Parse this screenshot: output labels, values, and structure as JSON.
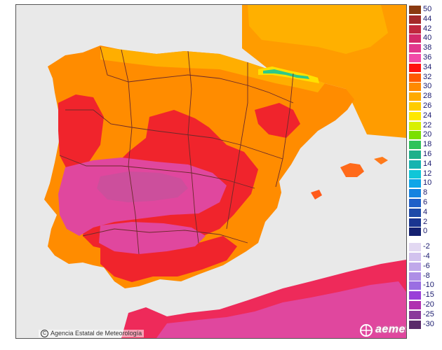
{
  "map": {
    "credit_text": "Agencia Estatal de Meteorología",
    "copyright_symbol": "C",
    "logo_text": "aemet",
    "colors": {
      "sea": "#e9e9e9",
      "land_base": "#ff8c00",
      "land_warm": "#ff6a00",
      "hot_red": "#f0242c",
      "hottest_pink": "#e8409c",
      "pink_core": "#de56b0",
      "mountain_cool": "#ffb400",
      "cold_green": "#2ec98a",
      "border": "#6b2a2a"
    }
  },
  "legend": {
    "title": "",
    "items": [
      {
        "label": "50",
        "color": "#8a3a10"
      },
      {
        "label": "44",
        "color": "#a42a2a"
      },
      {
        "label": "42",
        "color": "#c0283e"
      },
      {
        "label": "40",
        "color": "#d42a6a"
      },
      {
        "label": "38",
        "color": "#e2378d"
      },
      {
        "label": "36",
        "color": "#f24aa8"
      },
      {
        "label": "34",
        "color": "#ff1010"
      },
      {
        "label": "32",
        "color": "#ff5a00"
      },
      {
        "label": "30",
        "color": "#ff8a00"
      },
      {
        "label": "28",
        "color": "#ffaa00"
      },
      {
        "label": "26",
        "color": "#ffcc00"
      },
      {
        "label": "24",
        "color": "#ffe800"
      },
      {
        "label": "22",
        "color": "#d8f000"
      },
      {
        "label": "20",
        "color": "#7ae000"
      },
      {
        "label": "18",
        "color": "#2ec35a"
      },
      {
        "label": "16",
        "color": "#1eb08a"
      },
      {
        "label": "14",
        "color": "#17b4b0"
      },
      {
        "label": "12",
        "color": "#10c6d8"
      },
      {
        "label": "10",
        "color": "#0ea6e8"
      },
      {
        "label": "8",
        "color": "#1483e0"
      },
      {
        "label": "6",
        "color": "#2060c8"
      },
      {
        "label": "4",
        "color": "#1e4aa8"
      },
      {
        "label": "2",
        "color": "#1a3590"
      },
      {
        "label": "0",
        "color": "#142070"
      },
      {
        "label": "-2",
        "color": "#e2d8f2"
      },
      {
        "label": "-4",
        "color": "#d2c2ee"
      },
      {
        "label": "-6",
        "color": "#c0a8ea"
      },
      {
        "label": "-8",
        "color": "#ae8ee6"
      },
      {
        "label": "-10",
        "color": "#9a6ee2"
      },
      {
        "label": "-15",
        "color": "#9a40d8"
      },
      {
        "label": "-20",
        "color": "#b030b0"
      },
      {
        "label": "-25",
        "color": "#8a3a9a"
      },
      {
        "label": "-30",
        "color": "#5a2a6a"
      }
    ]
  }
}
